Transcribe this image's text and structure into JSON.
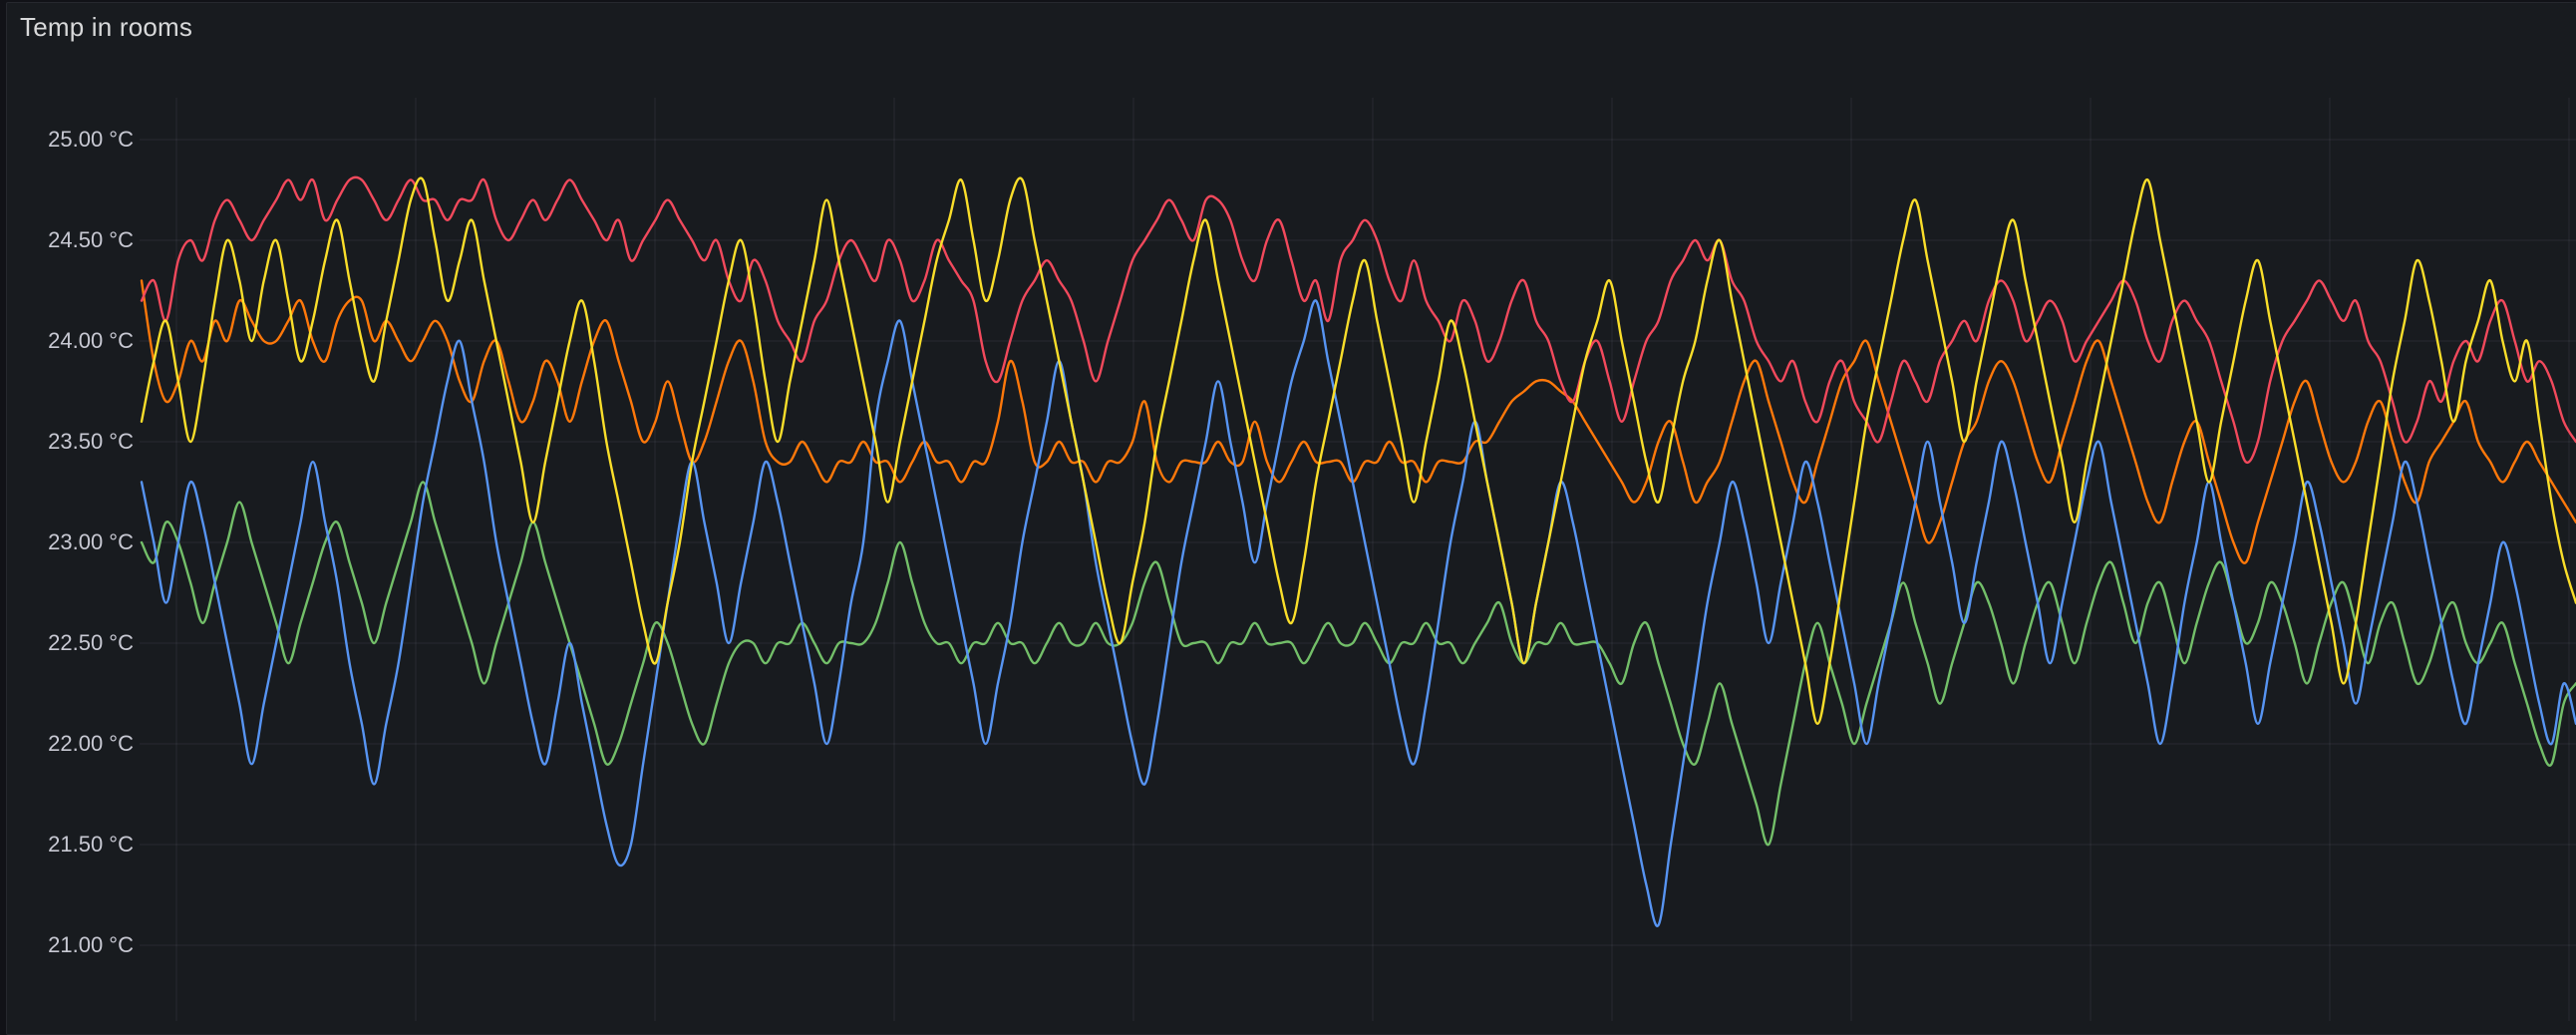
{
  "panel": {
    "title": "Temp in rooms",
    "background": "#181B1F",
    "page_background": "#111217",
    "border_color": "#26282E",
    "title_color": "#D8D9DA"
  },
  "y_axis": {
    "tick_labels": [
      "25.00 °C",
      "24.50 °C",
      "24.00 °C",
      "23.50 °C",
      "23.00 °C",
      "22.50 °C",
      "22.00 °C",
      "21.50 °C",
      "21.00 °C"
    ],
    "tick_values": [
      25.0,
      24.5,
      24.0,
      23.5,
      23.0,
      22.5,
      22.0,
      21.5,
      21.0
    ],
    "color": "#C8C9D3"
  },
  "grid": {
    "color": "rgba(204,204,220,0.09)",
    "h_gridlines": 9,
    "v_gridlines": 11
  },
  "chart_data": {
    "type": "line",
    "title": "Temp in rooms",
    "xlabel": "",
    "ylabel": "",
    "unit": "°C",
    "ylim": [
      20.6,
      25.25
    ],
    "y_ticks": [
      25.0,
      24.5,
      24.0,
      23.5,
      23.0,
      22.5,
      22.0,
      21.5,
      21.0
    ],
    "grid": true,
    "legend_position": "none",
    "line_width": 2.4,
    "interpolation": "smooth",
    "draw_order": [
      "series-green",
      "series-orange",
      "series-red",
      "series-blue",
      "series-yellow"
    ],
    "series": [
      {
        "name": "series-red",
        "color": "#F2495C",
        "values": [
          24.2,
          24.3,
          24.1,
          24.4,
          24.5,
          24.4,
          24.6,
          24.7,
          24.6,
          24.5,
          24.6,
          24.7,
          24.8,
          24.7,
          24.8,
          24.6,
          24.7,
          24.8,
          24.8,
          24.7,
          24.6,
          24.7,
          24.8,
          24.7,
          24.7,
          24.6,
          24.7,
          24.7,
          24.8,
          24.6,
          24.5,
          24.6,
          24.7,
          24.6,
          24.7,
          24.8,
          24.7,
          24.6,
          24.5,
          24.6,
          24.4,
          24.5,
          24.6,
          24.7,
          24.6,
          24.5,
          24.4,
          24.5,
          24.3,
          24.2,
          24.4,
          24.3,
          24.1,
          24.0,
          23.9,
          24.1,
          24.2,
          24.4,
          24.5,
          24.4,
          24.3,
          24.5,
          24.4,
          24.2,
          24.3,
          24.5,
          24.4,
          24.3,
          24.2,
          23.9,
          23.8,
          24.0,
          24.2,
          24.3,
          24.4,
          24.3,
          24.2,
          24.0,
          23.8,
          24.0,
          24.2,
          24.4,
          24.5,
          24.6,
          24.7,
          24.6,
          24.5,
          24.7,
          24.7,
          24.6,
          24.4,
          24.3,
          24.5,
          24.6,
          24.4,
          24.2,
          24.3,
          24.1,
          24.4,
          24.5,
          24.6,
          24.5,
          24.3,
          24.2,
          24.4,
          24.2,
          24.1,
          24.0,
          24.2,
          24.1,
          23.9,
          24.0,
          24.2,
          24.3,
          24.1,
          24.0,
          23.8,
          23.7,
          23.9,
          24.0,
          23.8,
          23.6,
          23.8,
          24.0,
          24.1,
          24.3,
          24.4,
          24.5,
          24.4,
          24.5,
          24.3,
          24.2,
          24.0,
          23.9,
          23.8,
          23.9,
          23.7,
          23.6,
          23.8,
          23.9,
          23.7,
          23.6,
          23.5,
          23.7,
          23.9,
          23.8,
          23.7,
          23.9,
          24.0,
          24.1,
          24.0,
          24.2,
          24.3,
          24.2,
          24.0,
          24.1,
          24.2,
          24.1,
          23.9,
          24.0,
          24.1,
          24.2,
          24.3,
          24.2,
          24.0,
          23.9,
          24.1,
          24.2,
          24.1,
          24.0,
          23.8,
          23.6,
          23.4,
          23.5,
          23.8,
          24.0,
          24.1,
          24.2,
          24.3,
          24.2,
          24.1,
          24.2,
          24.0,
          23.9,
          23.7,
          23.5,
          23.6,
          23.8,
          23.7,
          23.9,
          24.0,
          23.9,
          24.1,
          24.2,
          24.0,
          23.8,
          23.9,
          23.8,
          23.6,
          23.5
        ]
      },
      {
        "name": "series-orange",
        "color": "#FF780A",
        "values": [
          24.3,
          23.9,
          23.7,
          23.8,
          24.0,
          23.9,
          24.1,
          24.0,
          24.2,
          24.1,
          24.0,
          24.0,
          24.1,
          24.2,
          24.0,
          23.9,
          24.1,
          24.2,
          24.2,
          24.0,
          24.1,
          24.0,
          23.9,
          24.0,
          24.1,
          24.0,
          23.8,
          23.7,
          23.9,
          24.0,
          23.8,
          23.6,
          23.7,
          23.9,
          23.8,
          23.6,
          23.8,
          24.0,
          24.1,
          23.9,
          23.7,
          23.5,
          23.6,
          23.8,
          23.6,
          23.4,
          23.5,
          23.7,
          23.9,
          24.0,
          23.8,
          23.5,
          23.4,
          23.4,
          23.5,
          23.4,
          23.3,
          23.4,
          23.4,
          23.5,
          23.4,
          23.4,
          23.3,
          23.4,
          23.5,
          23.4,
          23.4,
          23.3,
          23.4,
          23.4,
          23.6,
          23.9,
          23.7,
          23.4,
          23.4,
          23.5,
          23.4,
          23.4,
          23.3,
          23.4,
          23.4,
          23.5,
          23.7,
          23.4,
          23.3,
          23.4,
          23.4,
          23.4,
          23.5,
          23.4,
          23.4,
          23.6,
          23.4,
          23.3,
          23.4,
          23.5,
          23.4,
          23.4,
          23.4,
          23.3,
          23.4,
          23.4,
          23.5,
          23.4,
          23.4,
          23.3,
          23.4,
          23.4,
          23.4,
          23.5,
          23.5,
          23.6,
          23.7,
          23.75,
          23.8,
          23.8,
          23.75,
          23.7,
          23.6,
          23.5,
          23.4,
          23.3,
          23.2,
          23.3,
          23.5,
          23.6,
          23.4,
          23.2,
          23.3,
          23.4,
          23.6,
          23.8,
          23.9,
          23.7,
          23.5,
          23.3,
          23.2,
          23.4,
          23.6,
          23.8,
          23.9,
          24.0,
          23.8,
          23.6,
          23.4,
          23.2,
          23.0,
          23.1,
          23.3,
          23.5,
          23.6,
          23.8,
          23.9,
          23.8,
          23.6,
          23.4,
          23.3,
          23.5,
          23.7,
          23.9,
          24.0,
          23.8,
          23.6,
          23.4,
          23.2,
          23.1,
          23.3,
          23.5,
          23.6,
          23.4,
          23.2,
          23.0,
          22.9,
          23.1,
          23.3,
          23.5,
          23.7,
          23.8,
          23.6,
          23.4,
          23.3,
          23.4,
          23.6,
          23.7,
          23.5,
          23.3,
          23.2,
          23.4,
          23.5,
          23.6,
          23.7,
          23.5,
          23.4,
          23.3,
          23.4,
          23.5,
          23.4,
          23.3,
          23.2,
          23.1
        ]
      },
      {
        "name": "series-yellow",
        "color": "#FADE2A",
        "values": [
          23.6,
          23.9,
          24.1,
          23.8,
          23.5,
          23.8,
          24.2,
          24.5,
          24.3,
          24.0,
          24.3,
          24.5,
          24.2,
          23.9,
          24.1,
          24.4,
          24.6,
          24.3,
          24.0,
          23.8,
          24.1,
          24.4,
          24.7,
          24.8,
          24.5,
          24.2,
          24.4,
          24.6,
          24.3,
          24.0,
          23.7,
          23.4,
          23.1,
          23.4,
          23.7,
          24.0,
          24.2,
          23.9,
          23.5,
          23.2,
          22.9,
          22.6,
          22.4,
          22.7,
          23.0,
          23.4,
          23.7,
          24.0,
          24.3,
          24.5,
          24.2,
          23.8,
          23.5,
          23.8,
          24.1,
          24.4,
          24.7,
          24.4,
          24.1,
          23.8,
          23.5,
          23.2,
          23.5,
          23.8,
          24.1,
          24.4,
          24.6,
          24.8,
          24.5,
          24.2,
          24.4,
          24.7,
          24.8,
          24.5,
          24.2,
          23.9,
          23.6,
          23.3,
          23.0,
          22.7,
          22.5,
          22.8,
          23.1,
          23.5,
          23.8,
          24.1,
          24.4,
          24.6,
          24.3,
          24.0,
          23.7,
          23.4,
          23.1,
          22.8,
          22.6,
          22.9,
          23.3,
          23.6,
          23.9,
          24.2,
          24.4,
          24.1,
          23.8,
          23.5,
          23.2,
          23.5,
          23.8,
          24.1,
          23.9,
          23.6,
          23.3,
          23.0,
          22.7,
          22.4,
          22.7,
          23.0,
          23.3,
          23.6,
          23.9,
          24.1,
          24.3,
          24.0,
          23.7,
          23.4,
          23.2,
          23.5,
          23.8,
          24.0,
          24.3,
          24.5,
          24.2,
          23.9,
          23.6,
          23.3,
          23.0,
          22.7,
          22.4,
          22.1,
          22.4,
          22.8,
          23.2,
          23.6,
          23.9,
          24.2,
          24.5,
          24.7,
          24.4,
          24.1,
          23.8,
          23.5,
          23.8,
          24.1,
          24.4,
          24.6,
          24.3,
          24.0,
          23.7,
          23.4,
          23.1,
          23.4,
          23.7,
          24.0,
          24.3,
          24.6,
          24.8,
          24.5,
          24.2,
          23.9,
          23.6,
          23.3,
          23.6,
          23.9,
          24.2,
          24.4,
          24.1,
          23.8,
          23.5,
          23.2,
          22.9,
          22.6,
          22.3,
          22.6,
          23.0,
          23.4,
          23.8,
          24.1,
          24.4,
          24.2,
          23.9,
          23.6,
          23.9,
          24.1,
          24.3,
          24.0,
          23.8,
          24.0,
          23.6,
          23.2,
          22.9,
          22.7
        ]
      },
      {
        "name": "series-blue",
        "color": "#5794F2",
        "values": [
          23.3,
          23.0,
          22.7,
          23.0,
          23.3,
          23.1,
          22.8,
          22.5,
          22.2,
          21.9,
          22.2,
          22.5,
          22.8,
          23.1,
          23.4,
          23.1,
          22.8,
          22.4,
          22.1,
          21.8,
          22.1,
          22.4,
          22.8,
          23.2,
          23.5,
          23.8,
          24.0,
          23.7,
          23.4,
          23.0,
          22.7,
          22.4,
          22.1,
          21.9,
          22.2,
          22.5,
          22.2,
          21.9,
          21.6,
          21.4,
          21.5,
          21.9,
          22.3,
          22.7,
          23.1,
          23.4,
          23.1,
          22.8,
          22.5,
          22.8,
          23.1,
          23.4,
          23.2,
          22.9,
          22.6,
          22.3,
          22.0,
          22.3,
          22.7,
          23.0,
          23.6,
          23.9,
          24.1,
          23.8,
          23.5,
          23.2,
          22.9,
          22.6,
          22.3,
          22.0,
          22.3,
          22.6,
          23.0,
          23.3,
          23.6,
          23.9,
          23.6,
          23.3,
          22.9,
          22.6,
          22.3,
          22.0,
          21.8,
          22.1,
          22.5,
          22.9,
          23.2,
          23.5,
          23.8,
          23.5,
          23.2,
          22.9,
          23.2,
          23.5,
          23.8,
          24.0,
          24.2,
          23.9,
          23.6,
          23.3,
          23.0,
          22.7,
          22.4,
          22.1,
          21.9,
          22.2,
          22.6,
          23.0,
          23.3,
          23.6,
          23.3,
          23.0,
          22.7,
          22.4,
          22.7,
          23.0,
          23.3,
          23.1,
          22.8,
          22.5,
          22.2,
          21.9,
          21.6,
          21.3,
          21.1,
          21.5,
          21.9,
          22.3,
          22.7,
          23.0,
          23.3,
          23.1,
          22.8,
          22.5,
          22.8,
          23.1,
          23.4,
          23.2,
          22.9,
          22.6,
          22.3,
          22.0,
          22.3,
          22.6,
          22.9,
          23.2,
          23.5,
          23.2,
          22.9,
          22.6,
          22.9,
          23.2,
          23.5,
          23.3,
          23.0,
          22.7,
          22.4,
          22.7,
          23.0,
          23.3,
          23.5,
          23.2,
          22.9,
          22.6,
          22.3,
          22.0,
          22.3,
          22.7,
          23.0,
          23.3,
          23.0,
          22.7,
          22.4,
          22.1,
          22.4,
          22.7,
          23.0,
          23.3,
          23.1,
          22.8,
          22.5,
          22.2,
          22.5,
          22.8,
          23.1,
          23.4,
          23.2,
          22.9,
          22.6,
          22.3,
          22.1,
          22.4,
          22.7,
          23.0,
          22.8,
          22.5,
          22.2,
          22.0,
          22.3,
          22.1
        ]
      },
      {
        "name": "series-green",
        "color": "#73BF69",
        "values": [
          23.0,
          22.9,
          23.1,
          23.0,
          22.8,
          22.6,
          22.8,
          23.0,
          23.2,
          23.0,
          22.8,
          22.6,
          22.4,
          22.6,
          22.8,
          23.0,
          23.1,
          22.9,
          22.7,
          22.5,
          22.7,
          22.9,
          23.1,
          23.3,
          23.1,
          22.9,
          22.7,
          22.5,
          22.3,
          22.5,
          22.7,
          22.9,
          23.1,
          22.9,
          22.7,
          22.5,
          22.3,
          22.1,
          21.9,
          22.0,
          22.2,
          22.4,
          22.6,
          22.5,
          22.3,
          22.1,
          22.0,
          22.2,
          22.4,
          22.5,
          22.5,
          22.4,
          22.5,
          22.5,
          22.6,
          22.5,
          22.4,
          22.5,
          22.5,
          22.5,
          22.6,
          22.8,
          23.0,
          22.8,
          22.6,
          22.5,
          22.5,
          22.4,
          22.5,
          22.5,
          22.6,
          22.5,
          22.5,
          22.4,
          22.5,
          22.6,
          22.5,
          22.5,
          22.6,
          22.5,
          22.5,
          22.6,
          22.8,
          22.9,
          22.7,
          22.5,
          22.5,
          22.5,
          22.4,
          22.5,
          22.5,
          22.6,
          22.5,
          22.5,
          22.5,
          22.4,
          22.5,
          22.6,
          22.5,
          22.5,
          22.6,
          22.5,
          22.4,
          22.5,
          22.5,
          22.6,
          22.5,
          22.5,
          22.4,
          22.5,
          22.6,
          22.7,
          22.5,
          22.4,
          22.5,
          22.5,
          22.6,
          22.5,
          22.5,
          22.5,
          22.4,
          22.3,
          22.5,
          22.6,
          22.4,
          22.2,
          22.0,
          21.9,
          22.1,
          22.3,
          22.1,
          21.9,
          21.7,
          21.5,
          21.8,
          22.1,
          22.4,
          22.6,
          22.4,
          22.2,
          22.0,
          22.2,
          22.4,
          22.6,
          22.8,
          22.6,
          22.4,
          22.2,
          22.4,
          22.6,
          22.8,
          22.7,
          22.5,
          22.3,
          22.5,
          22.7,
          22.8,
          22.6,
          22.4,
          22.6,
          22.8,
          22.9,
          22.7,
          22.5,
          22.7,
          22.8,
          22.6,
          22.4,
          22.6,
          22.8,
          22.9,
          22.7,
          22.5,
          22.6,
          22.8,
          22.7,
          22.5,
          22.3,
          22.5,
          22.7,
          22.8,
          22.6,
          22.4,
          22.6,
          22.7,
          22.5,
          22.3,
          22.4,
          22.6,
          22.7,
          22.5,
          22.4,
          22.5,
          22.6,
          22.4,
          22.2,
          22.0,
          21.9,
          22.2,
          22.3
        ]
      }
    ]
  }
}
